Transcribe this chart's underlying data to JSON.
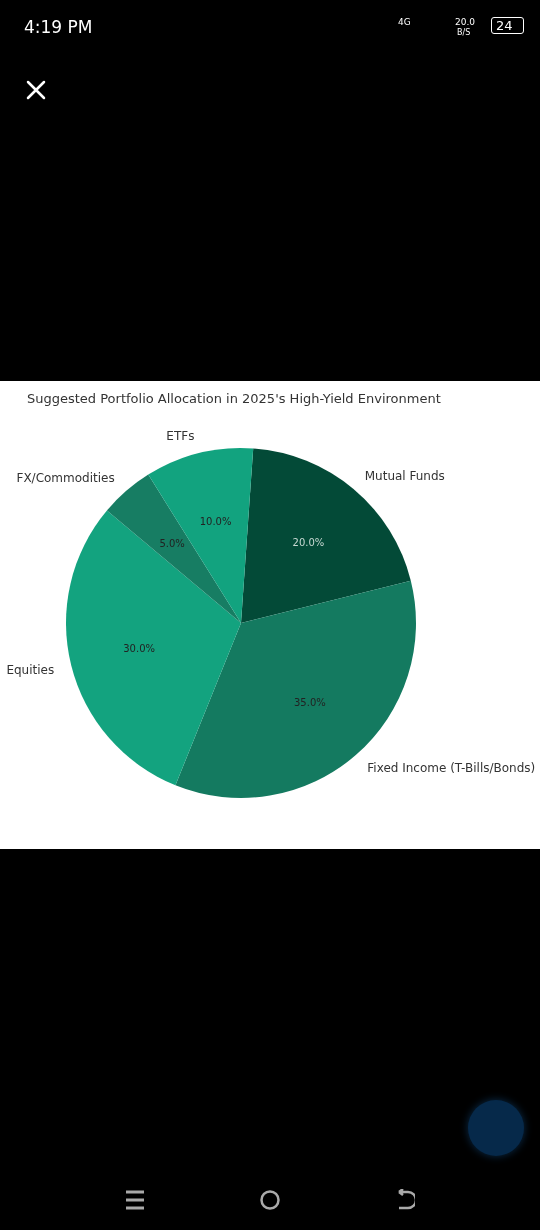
{
  "chart_data": {
    "type": "pie",
    "title": "Suggested Portfolio Allocation in 2025's High-Yield Environment",
    "categories": [
      "Mutual Funds",
      "Fixed Income (T-Bills/Bonds)",
      "Equities",
      "FX/Commodities",
      "ETFs"
    ],
    "values": [
      20,
      35,
      30,
      5,
      10
    ],
    "value_labels": [
      "20.0%",
      "35.0%",
      "30.0%",
      "5.0%",
      "10.0%"
    ],
    "colors": [
      "#034a37",
      "#147a60",
      "#13a37f",
      "#177d63",
      "#12a37f"
    ],
    "legend": false,
    "annotations": [
      "4:19 PM",
      "4G",
      "20.0",
      "B/S",
      "24"
    ]
  }
}
